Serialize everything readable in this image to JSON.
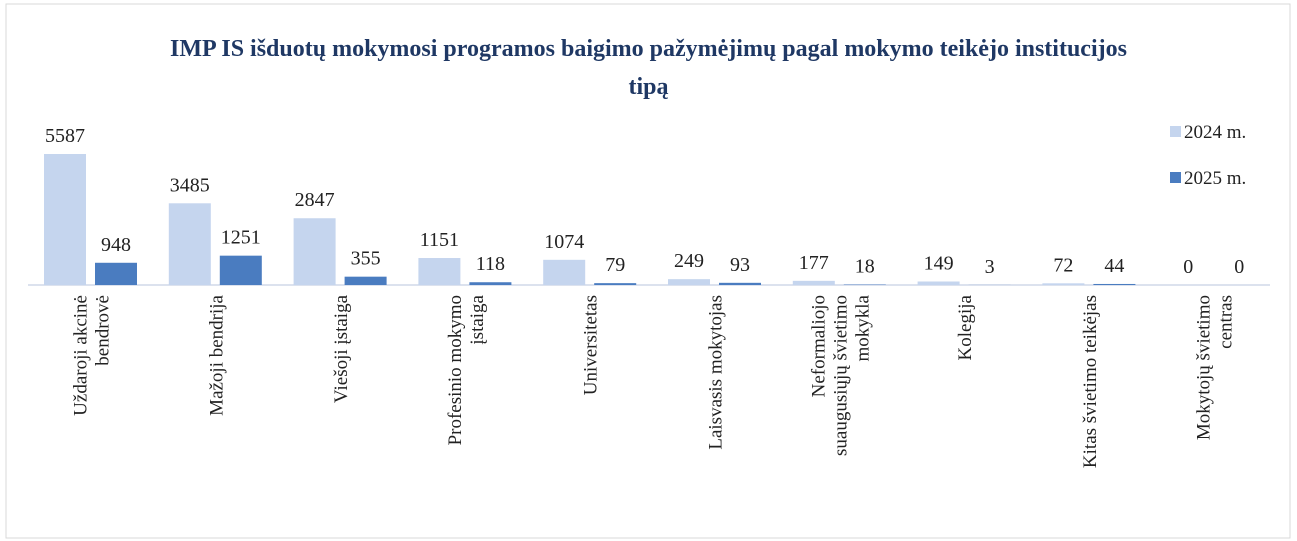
{
  "chart_data": {
    "type": "bar",
    "title": "IMP IS išduotų mokymosi programos baigimo pažymėjimų pagal mokymo teikėjo institucijos tipą",
    "categories": [
      "Uždaroji akcinė\nbendrovė",
      "Mažoji bendrija",
      "Viešoji įstaiga",
      "Profesinio mokymo\nįstaiga",
      "Universitetas",
      "Laisvasis mokytojas",
      "Neformaliojo\nsuaugusiųjų švietimo\nmokykla",
      "Kolegija",
      "Kitas švietimo teikėjas",
      "Mokytojų švietimo\ncentras"
    ],
    "series": [
      {
        "name": "2024 m.",
        "color": "#c5d5ee",
        "values": [
          5587,
          3485,
          2847,
          1151,
          1074,
          249,
          177,
          149,
          72,
          0
        ]
      },
      {
        "name": "2025 m.",
        "color": "#4a7cc0",
        "values": [
          948,
          1251,
          355,
          118,
          79,
          93,
          18,
          3,
          44,
          0
        ]
      }
    ],
    "legend": "right"
  }
}
